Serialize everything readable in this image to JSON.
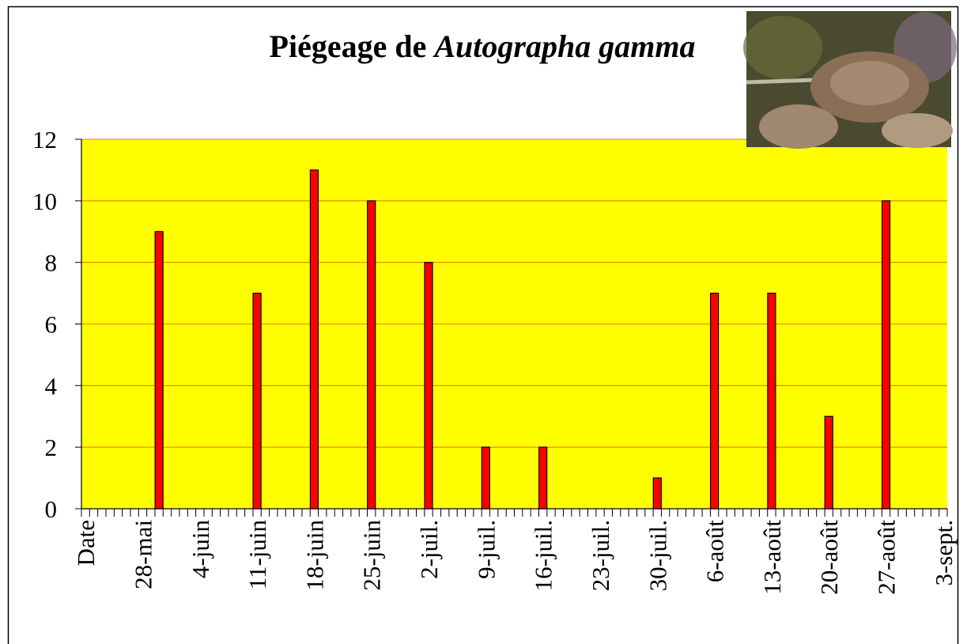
{
  "chart_data": {
    "type": "bar",
    "title": {
      "plain": "Piégeage de",
      "italic": "Autographa gamma"
    },
    "categories": [
      "Date",
      null,
      null,
      null,
      null,
      null,
      null,
      "28-mai",
      null,
      null,
      null,
      null,
      null,
      null,
      "4-juin",
      null,
      null,
      null,
      null,
      null,
      null,
      "11-juin",
      null,
      null,
      null,
      null,
      null,
      null,
      "18-juin",
      null,
      null,
      null,
      null,
      null,
      null,
      "25-juin",
      null,
      null,
      null,
      null,
      null,
      null,
      "2-juil.",
      null,
      null,
      null,
      null,
      null,
      null,
      "9-juil.",
      null,
      null,
      null,
      null,
      null,
      null,
      "16-juil.",
      null,
      null,
      null,
      null,
      null,
      null,
      "23-juil.",
      null,
      null,
      null,
      null,
      null,
      null,
      "30-juil.",
      null,
      null,
      null,
      null,
      null,
      null,
      "6-août",
      null,
      null,
      null,
      null,
      null,
      null,
      "13-août",
      null,
      null,
      null,
      null,
      null,
      null,
      "20-août",
      null,
      null,
      null,
      null,
      null,
      null,
      "27-août",
      null,
      null,
      null,
      null,
      null,
      null,
      "3-sept."
    ],
    "values": [
      null,
      null,
      null,
      null,
      null,
      null,
      null,
      null,
      null,
      9,
      null,
      null,
      null,
      null,
      null,
      null,
      null,
      null,
      null,
      null,
      null,
      7,
      null,
      null,
      null,
      null,
      null,
      null,
      11,
      null,
      null,
      null,
      null,
      null,
      null,
      10,
      null,
      null,
      null,
      null,
      null,
      null,
      8,
      null,
      null,
      null,
      null,
      null,
      null,
      2,
      null,
      null,
      null,
      null,
      null,
      null,
      2,
      null,
      null,
      null,
      null,
      null,
      null,
      null,
      null,
      null,
      null,
      null,
      null,
      null,
      1,
      null,
      null,
      null,
      null,
      null,
      null,
      7,
      null,
      null,
      null,
      null,
      null,
      null,
      7,
      null,
      null,
      null,
      null,
      null,
      null,
      3,
      null,
      null,
      null,
      null,
      null,
      null,
      10,
      null,
      null,
      null,
      null,
      null,
      null,
      null
    ],
    "color": "#ff0000",
    "plot_background": "#ffff00",
    "grid_color": "#e06000",
    "ylim": [
      0,
      12
    ],
    "yticks": [
      0,
      2,
      4,
      6,
      8,
      10,
      12
    ],
    "grid": true
  }
}
